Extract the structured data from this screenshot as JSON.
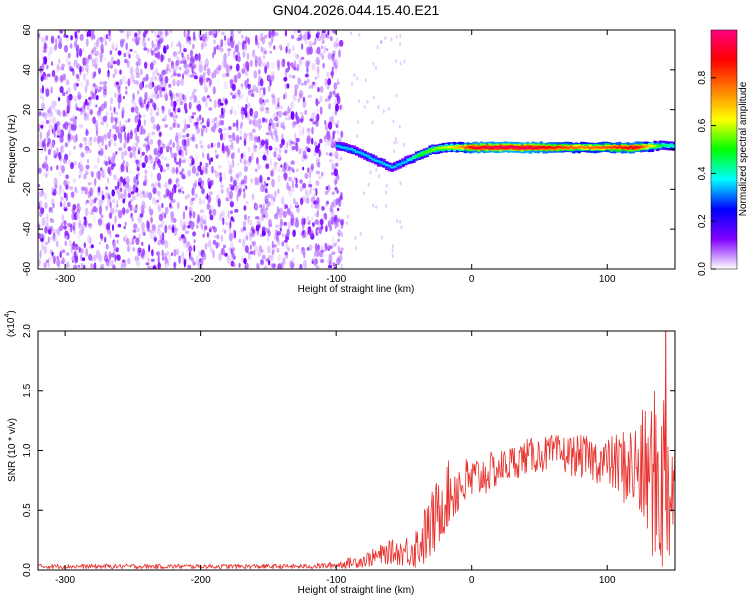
{
  "title": "GN04.2026.044.15.40.E21",
  "chart_data": [
    {
      "type": "heatmap",
      "xlabel": "Height of straight line (km)",
      "ylabel": "Frequency (Hz)",
      "xlim": [
        -320,
        150
      ],
      "ylim": [
        -60,
        60
      ],
      "x_ticks": [
        -300,
        -200,
        -100,
        0,
        100
      ],
      "y_ticks": [
        -60,
        -40,
        -20,
        0,
        20,
        40,
        60
      ],
      "colorbar": {
        "label": "Normalized spectral amplitude",
        "range": [
          0,
          1
        ],
        "ticks": [
          0.0,
          0.2,
          0.4,
          0.6,
          0.8
        ],
        "tick_labels": [
          "0.0",
          "0.2",
          "0.4",
          "0.6",
          "0.8"
        ],
        "colormap": [
          "#ffffff",
          "#7f00ff",
          "#0000ff",
          "#00ffff",
          "#00ff00",
          "#ffff00",
          "#ff7f00",
          "#ff0000",
          "#ff0080"
        ]
      },
      "noise_region": {
        "x": [
          -320,
          -100
        ],
        "amplitude": 0.1
      },
      "ridge": {
        "x": [
          -100,
          -90,
          -80,
          -70,
          -60,
          -50,
          -40,
          -30,
          -20,
          -10,
          0,
          20,
          40,
          60,
          80,
          100,
          120,
          140,
          150
        ],
        "frequency": [
          2,
          0,
          -3,
          -6,
          -9,
          -6,
          -3,
          0,
          1,
          1,
          1,
          1,
          1,
          1,
          1,
          1,
          1,
          2,
          2
        ],
        "amplitude": [
          0.35,
          0.35,
          0.35,
          0.35,
          0.35,
          0.35,
          0.5,
          0.55,
          0.6,
          0.7,
          0.9,
          0.95,
          0.95,
          0.85,
          0.75,
          0.8,
          0.9,
          0.45,
          0.4
        ]
      }
    },
    {
      "type": "line",
      "xlabel": "Height of straight line (km)",
      "ylabel": "SNR (10 * v/v)",
      "y_multiplier_label": "(x10",
      "y_multiplier_exp": "4",
      "y_multiplier_close": ")",
      "xlim": [
        -320,
        150
      ],
      "ylim": [
        0,
        2
      ],
      "x_ticks": [
        -300,
        -200,
        -100,
        0,
        100
      ],
      "y_ticks": [
        0.0,
        0.5,
        1.0,
        1.5,
        2.0
      ],
      "y_tick_labels": [
        "0.0",
        "0.5",
        "1.0",
        "1.5",
        "2.0"
      ],
      "color": "#e8302c",
      "envelope": {
        "x": [
          -320,
          -120,
          -100,
          -80,
          -60,
          -50,
          -40,
          -30,
          -20,
          -10,
          0,
          20,
          40,
          60,
          80,
          100,
          120,
          130,
          140,
          150
        ],
        "mean": [
          0.03,
          0.03,
          0.04,
          0.08,
          0.15,
          0.15,
          0.2,
          0.35,
          0.6,
          0.7,
          0.75,
          0.85,
          0.95,
          0.98,
          0.95,
          0.9,
          0.85,
          0.8,
          0.75,
          0.75
        ],
        "spread": [
          0.02,
          0.02,
          0.03,
          0.06,
          0.1,
          0.12,
          0.2,
          0.3,
          0.3,
          0.25,
          0.2,
          0.15,
          0.15,
          0.15,
          0.18,
          0.2,
          0.4,
          0.6,
          0.9,
          0.7
        ]
      },
      "peak": {
        "x": 143,
        "y": 2.0
      }
    }
  ]
}
